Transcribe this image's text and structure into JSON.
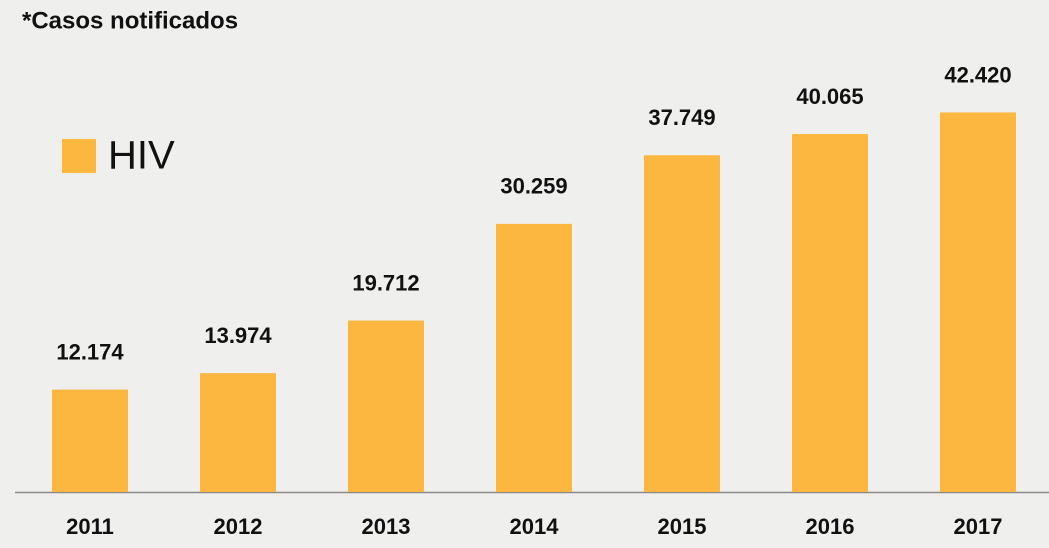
{
  "chart_data": {
    "type": "bar",
    "title": "*Casos notificados",
    "categories": [
      "2011",
      "2012",
      "2013",
      "2014",
      "2015",
      "2016",
      "2017"
    ],
    "series": [
      {
        "name": "HIV",
        "color": "#fbb73f",
        "values": [
          12174,
          13974,
          19712,
          30259,
          37749,
          40065,
          42420
        ],
        "value_labels": [
          "12.174",
          "13.974",
          "19.712",
          "30.259",
          "37.749",
          "40.065",
          "42.420"
        ]
      }
    ],
    "ylim": [
      1000,
      50000
    ],
    "legend": "top-left"
  }
}
